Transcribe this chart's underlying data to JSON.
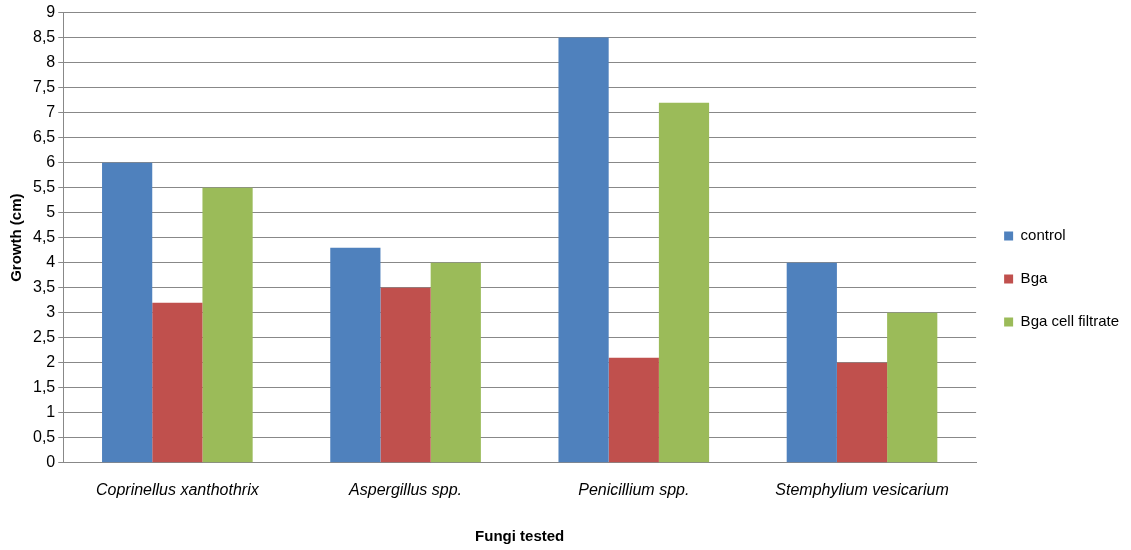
{
  "chart_data": {
    "type": "bar",
    "xlabel": "Fungi tested",
    "ylabel": "Growth (cm)",
    "categories": [
      "Coprinellus xanthothrix",
      "Aspergillus spp.",
      "Penicillium spp.",
      "Stemphylium vesicarium"
    ],
    "series": [
      {
        "name": "control",
        "color": "#4f81bd",
        "values": [
          6,
          4.3,
          8.5,
          4
        ]
      },
      {
        "name": "Bga",
        "color": "#c0504d",
        "values": [
          3.2,
          3.5,
          2.1,
          2
        ]
      },
      {
        "name": "Bga cell filtrate",
        "color": "#9bbb59",
        "values": [
          5.5,
          4,
          7.2,
          3
        ]
      }
    ],
    "ylim": [
      0,
      9
    ],
    "yticks": [
      0,
      {
        "value": 0.5,
        "label": "0,5"
      },
      1,
      {
        "value": 1.5,
        "label": "1,5"
      },
      2,
      {
        "value": 2.5,
        "label": "2,5"
      },
      3,
      {
        "value": 3.5,
        "label": "3,5"
      },
      4,
      {
        "value": 4.5,
        "label": "4,5"
      },
      5,
      {
        "value": 5.5,
        "label": "5,5"
      },
      6,
      {
        "value": 6.5,
        "label": "6,5"
      },
      7,
      {
        "value": 7.5,
        "label": "7,5"
      },
      8,
      {
        "value": 8.5,
        "label": "8,5"
      },
      9
    ],
    "grid": "y",
    "legend": "right"
  }
}
